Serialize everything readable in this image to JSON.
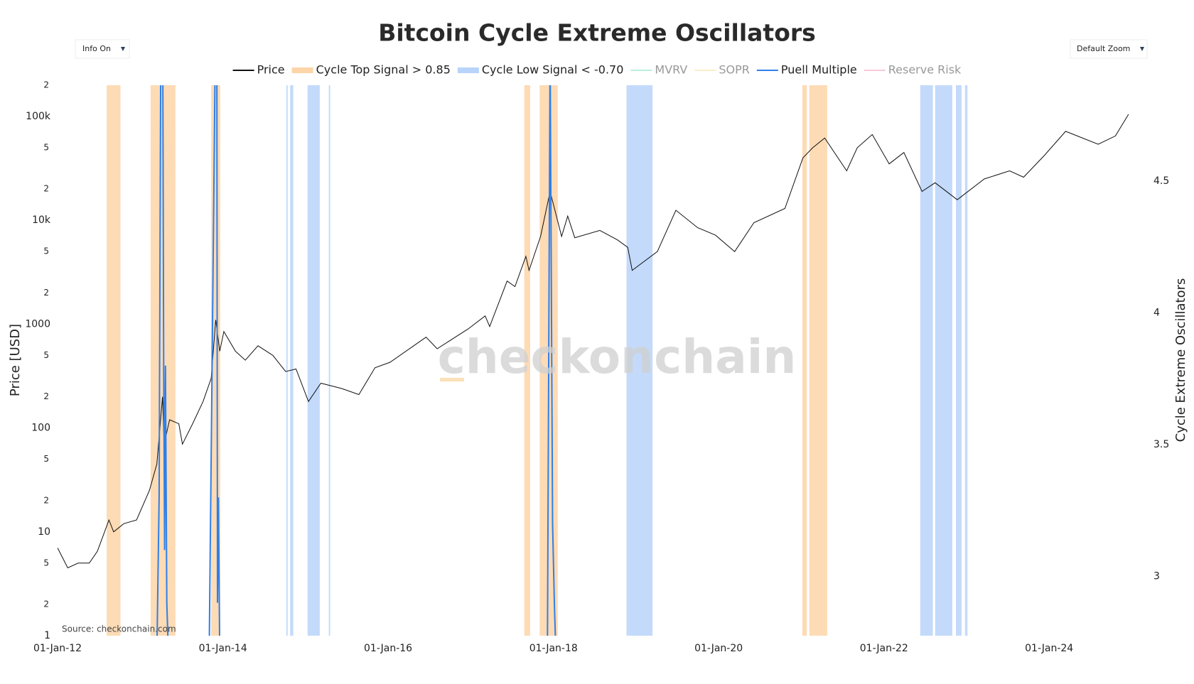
{
  "chart_data": {
    "type": "line",
    "title": "Bitcoin Cycle Extreme Oscillators",
    "y_label": "Price [USD]",
    "y2_label": "Cycle Extreme Oscillators",
    "source": "Source: checkonchain.com",
    "watermark": "checkonchain",
    "buttons": [
      "Info On",
      "Default Zoom"
    ],
    "log_y": true,
    "grid": false,
    "xlim": [
      "2012-01-01",
      "2025-02-15"
    ],
    "xticks": [
      {
        "value": "2012-01-01",
        "label": "01-Jan-12"
      },
      {
        "value": "2014-01-01",
        "label": "01-Jan-14"
      },
      {
        "value": "2016-01-01",
        "label": "01-Jan-16"
      },
      {
        "value": "2018-01-01",
        "label": "01-Jan-18"
      },
      {
        "value": "2020-01-01",
        "label": "01-Jan-20"
      },
      {
        "value": "2022-01-01",
        "label": "01-Jan-22"
      },
      {
        "value": "2024-01-01",
        "label": "01-Jan-24"
      }
    ],
    "ylim": [
      1,
      200000
    ],
    "yticks": [
      1,
      {
        "value": 2,
        "label": "2"
      },
      {
        "value": 5,
        "label": "5"
      },
      10,
      {
        "value": 20,
        "label": "2"
      },
      {
        "value": 50,
        "label": "5"
      },
      100,
      {
        "value": 200,
        "label": "2"
      },
      {
        "value": 500,
        "label": "5"
      },
      1000,
      {
        "value": 2000,
        "label": "2"
      },
      {
        "value": 5000,
        "label": "5"
      },
      {
        "value": 10000,
        "label": "10k"
      },
      {
        "value": 20000,
        "label": "2"
      },
      {
        "value": 50000,
        "label": "5"
      },
      {
        "value": 100000,
        "label": "100k"
      },
      {
        "value": 200000,
        "label": "2"
      }
    ],
    "y2lim": [
      2.775,
      4.864
    ],
    "y2ticks": [
      3,
      3.5,
      4,
      4.5
    ],
    "series": [
      {
        "name": "Price",
        "kind": "line",
        "color": "#111111",
        "axis": "y",
        "x": [
          "2012-01-01",
          "2012-02-15",
          "2012-04-01",
          "2012-05-20",
          "2012-06-25",
          "2012-08-15",
          "2012-09-05",
          "2012-10-20",
          "2012-12-15",
          "2013-02-10",
          "2013-03-15",
          "2013-04-09",
          "2013-04-16",
          "2013-05-10",
          "2013-06-20",
          "2013-07-06",
          "2013-08-20",
          "2013-10-05",
          "2013-11-10",
          "2013-11-30",
          "2013-12-18",
          "2014-01-05",
          "2014-02-25",
          "2014-04-10",
          "2014-06-05",
          "2014-08-10",
          "2014-10-05",
          "2014-11-20",
          "2015-01-14",
          "2015-03-10",
          "2015-06-10",
          "2015-08-25",
          "2015-11-04",
          "2016-01-10",
          "2016-06-17",
          "2016-08-05",
          "2016-12-20",
          "2017-03-05",
          "2017-03-25",
          "2017-06-10",
          "2017-07-15",
          "2017-09-01",
          "2017-09-15",
          "2017-11-05",
          "2017-12-17",
          "2018-02-06",
          "2018-03-05",
          "2018-04-05",
          "2018-07-25",
          "2018-10-10",
          "2018-11-25",
          "2018-12-15",
          "2019-04-05",
          "2019-06-26",
          "2019-09-30",
          "2019-12-18",
          "2020-03-12",
          "2020-06-05",
          "2020-10-20",
          "2021-01-08",
          "2021-02-20",
          "2021-04-14",
          "2021-07-20",
          "2021-09-05",
          "2021-11-10",
          "2022-01-24",
          "2022-03-30",
          "2022-06-18",
          "2022-08-15",
          "2022-11-21",
          "2023-03-20",
          "2023-07-10",
          "2023-09-10",
          "2023-12-10",
          "2024-03-14",
          "2024-08-05",
          "2024-10-20",
          "2024-12-17"
        ],
        "values": [
          7,
          4.5,
          5,
          5,
          6.5,
          13,
          10,
          12,
          13,
          25,
          45,
          200,
          70,
          120,
          110,
          70,
          110,
          180,
          300,
          1100,
          550,
          850,
          550,
          450,
          620,
          500,
          350,
          370,
          180,
          270,
          240,
          210,
          380,
          430,
          750,
          580,
          900,
          1200,
          950,
          2600,
          2300,
          4500,
          3300,
          7000,
          19000,
          7000,
          11000,
          6800,
          8000,
          6500,
          5500,
          3300,
          5000,
          12500,
          8500,
          7200,
          5000,
          9500,
          13000,
          40000,
          50000,
          62000,
          30000,
          50000,
          67000,
          35000,
          45000,
          19000,
          23000,
          15800,
          25000,
          30000,
          26000,
          42000,
          72000,
          54000,
          65000,
          105000
        ]
      },
      {
        "name": "Cycle Top Signal > 0.85",
        "kind": "band",
        "color": "#fdd5a8",
        "ranges": [
          [
            "2012-08-05",
            "2012-10-05"
          ],
          [
            "2013-02-15",
            "2013-06-05"
          ],
          [
            "2013-11-10",
            "2013-12-20"
          ],
          [
            "2017-08-25",
            "2017-09-20"
          ],
          [
            "2017-11-01",
            "2018-01-20"
          ],
          [
            "2021-01-05",
            "2021-01-25"
          ],
          [
            "2021-02-05",
            "2021-04-25"
          ]
        ]
      },
      {
        "name": "Cycle Low Signal < -0.70",
        "kind": "band",
        "color": "#b8d4fa",
        "ranges": [
          [
            "2014-10-08",
            "2014-10-14"
          ],
          [
            "2014-10-25",
            "2014-11-08"
          ],
          [
            "2015-01-10",
            "2015-03-05"
          ],
          [
            "2015-04-14",
            "2015-04-20"
          ],
          [
            "2018-11-20",
            "2019-03-15"
          ],
          [
            "2022-06-10",
            "2022-08-05"
          ],
          [
            "2022-08-15",
            "2022-10-30"
          ],
          [
            "2022-11-15",
            "2022-12-10"
          ],
          [
            "2022-12-25",
            "2023-01-05"
          ]
        ]
      },
      {
        "name": "MVRV",
        "kind": "hidden",
        "color": "#8fe3cc"
      },
      {
        "name": "SOPR",
        "kind": "hidden",
        "color": "#f7e2a6"
      },
      {
        "name": "Puell Multiple",
        "kind": "line",
        "color": "#2f7fe8",
        "axis": "y2",
        "x": [
          "2013-03-15",
          "2013-03-25",
          "2013-04-01",
          "2013-04-10",
          "2013-04-14",
          "2013-04-18",
          "2013-04-22",
          "2013-04-28",
          "2013-05-05",
          "2013-10-25",
          "2013-11-01",
          "2013-11-28",
          "2013-12-05",
          "2013-12-08",
          "2013-12-12",
          "2013-12-18",
          "2017-11-25",
          "2017-12-05",
          "2017-12-17",
          "2017-12-28",
          "2018-01-05",
          "2018-01-12"
        ],
        "values": [
          2.7,
          3.3,
          5.0,
          5.0,
          3.8,
          3.1,
          3.8,
          2.9,
          2.7,
          null,
          2.7,
          5.0,
          5.0,
          2.9,
          3.3,
          2.7,
          null,
          2.7,
          5.0,
          3.2,
          2.9,
          2.7
        ]
      },
      {
        "name": "Reserve Risk",
        "kind": "hidden",
        "color": "#f7a8c0"
      }
    ]
  }
}
